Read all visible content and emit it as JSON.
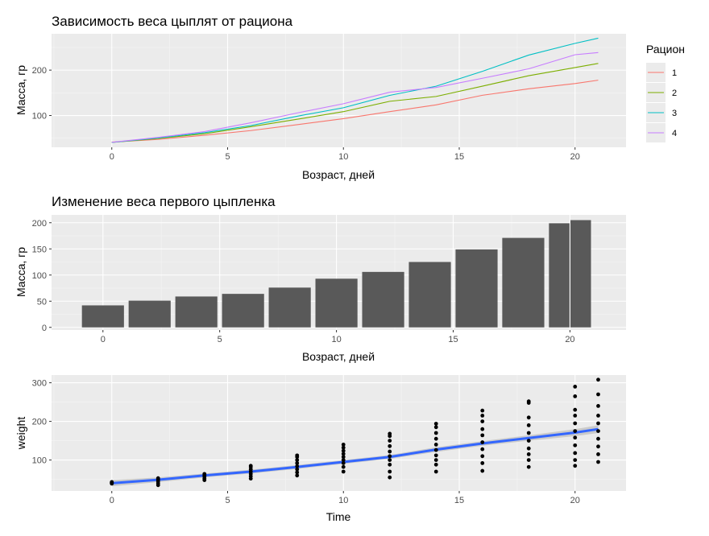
{
  "chart_data": [
    {
      "type": "line",
      "title": "Зависимость веса цыплят от рациона",
      "xlabel": "Возраст, дней",
      "ylabel": "Масса, гр",
      "xlim": [
        -2.6,
        22.2
      ],
      "ylim": [
        30,
        280
      ],
      "xticks": [
        0,
        5,
        10,
        15,
        20
      ],
      "xtick_labels": [
        "0",
        "5",
        "10",
        "15",
        "20"
      ],
      "yticks": [
        100,
        200
      ],
      "ytick_labels": [
        "100",
        "200"
      ],
      "grid": true,
      "legend_title": "Рацион",
      "legend_position": "right",
      "x": [
        0,
        2,
        4,
        6,
        8,
        10,
        12,
        14,
        16,
        18,
        20,
        21
      ],
      "series": [
        {
          "name": "1",
          "color": "#F8766D",
          "values": [
            41.4,
            47.3,
            56.5,
            66.8,
            79.7,
            93.1,
            108.5,
            123.4,
            144.6,
            158.9,
            170.4,
            177.8
          ]
        },
        {
          "name": "2",
          "color": "#7CAE00",
          "values": [
            40.7,
            49.4,
            59.8,
            75.4,
            91.7,
            108.5,
            131.3,
            141.9,
            164.7,
            187.7,
            205.6,
            214.7
          ]
        },
        {
          "name": "3",
          "color": "#00BFC4",
          "values": [
            40.8,
            50.4,
            62.2,
            77.9,
            98.4,
            117.1,
            144.4,
            164.5,
            197.4,
            233.1,
            258.9,
            270.3
          ]
        },
        {
          "name": "4",
          "color": "#C77CFF",
          "values": [
            41.0,
            51.8,
            64.5,
            83.9,
            105.6,
            126.0,
            151.4,
            161.8,
            182.0,
            202.9,
            233.9,
            238.6
          ]
        }
      ]
    },
    {
      "type": "bar",
      "title": "Изменение веса первого цыпленка",
      "xlabel": "Возраст, дней",
      "ylabel": "Масса, гр",
      "xlim": [
        -2.2,
        22.4
      ],
      "ylim": [
        -5,
        215
      ],
      "xticks": [
        0,
        5,
        10,
        15,
        20
      ],
      "xtick_labels": [
        "0",
        "5",
        "10",
        "15",
        "20"
      ],
      "yticks": [
        0,
        50,
        100,
        150,
        200
      ],
      "ytick_labels": [
        "0",
        "50",
        "100",
        "150",
        "200"
      ],
      "grid": true,
      "bar_color": "#595959",
      "x": [
        0,
        2,
        4,
        6,
        8,
        10,
        12,
        14,
        16,
        18,
        20,
        21
      ],
      "values": [
        42,
        51,
        59,
        64,
        76,
        93,
        106,
        125,
        149,
        171,
        199,
        205
      ]
    },
    {
      "type": "scatter",
      "title": "",
      "xlabel": "Time",
      "ylabel": "weight",
      "xlim": [
        -2.6,
        22.2
      ],
      "ylim": [
        20,
        320
      ],
      "xticks": [
        0,
        5,
        10,
        15,
        20
      ],
      "xtick_labels": [
        "0",
        "5",
        "10",
        "15",
        "20"
      ],
      "yticks": [
        100,
        200,
        300
      ],
      "ytick_labels": [
        "100",
        "200",
        "300"
      ],
      "grid": true,
      "point_color": "#000000",
      "smooth_color": "#3366FF",
      "points": {
        "0": [
          39,
          40,
          41,
          42,
          43
        ],
        "2": [
          35,
          40,
          45,
          49,
          51,
          53
        ],
        "4": [
          48,
          52,
          57,
          60,
          62,
          64
        ],
        "6": [
          52,
          58,
          64,
          70,
          76,
          82,
          85
        ],
        "8": [
          60,
          68,
          76,
          84,
          92,
          100,
          108,
          112
        ],
        "10": [
          70,
          82,
          92,
          100,
          108,
          116,
          124,
          132,
          140
        ],
        "12": [
          55,
          70,
          88,
          100,
          110,
          122,
          136,
          150,
          162,
          168
        ],
        "14": [
          70,
          88,
          100,
          112,
          126,
          140,
          155,
          170,
          185,
          194
        ],
        "16": [
          72,
          92,
          110,
          128,
          146,
          164,
          180,
          200,
          215,
          228
        ],
        "18": [
          82,
          100,
          115,
          130,
          150,
          170,
          190,
          210,
          248,
          252
        ],
        "20": [
          85,
          100,
          118,
          138,
          158,
          175,
          195,
          215,
          230,
          265,
          290
        ],
        "21": [
          95,
          115,
          135,
          155,
          175,
          195,
          215,
          240,
          270,
          308
        ]
      },
      "smooth": {
        "x": [
          0,
          2,
          4,
          6,
          8,
          10,
          12,
          14,
          16,
          18,
          20,
          21
        ],
        "y": [
          40,
          49,
          60,
          70,
          82,
          95,
          108,
          127,
          143,
          157,
          171,
          180
        ],
        "band": [
          8,
          6,
          5,
          5,
          5,
          5,
          5,
          6,
          6,
          7,
          9,
          10
        ]
      }
    }
  ]
}
